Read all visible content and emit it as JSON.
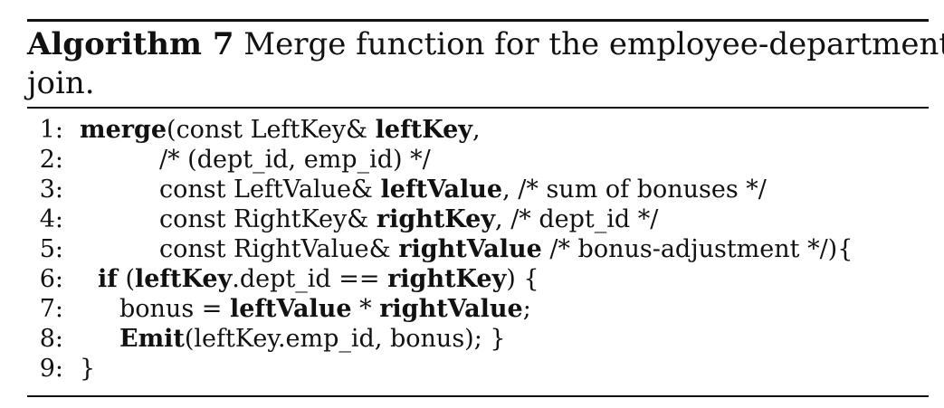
{
  "caption": {
    "label": "Algorithm 7",
    "line1": " Merge function for the employee-department",
    "line2": "join."
  },
  "lines": [
    {
      "num": "1:",
      "parts": [
        {
          "t": "merge",
          "b": true
        },
        {
          "t": "(const LeftKey& "
        },
        {
          "t": "leftKey",
          "b": true
        },
        {
          "t": ","
        }
      ]
    },
    {
      "num": "2:",
      "parts": [
        {
          "t": "/* (dept_id, emp_id) */"
        }
      ]
    },
    {
      "num": "3:",
      "parts": [
        {
          "t": "const LeftValue& "
        },
        {
          "t": "leftValue",
          "b": true
        },
        {
          "t": ", /* sum of bonuses */"
        }
      ]
    },
    {
      "num": "4:",
      "parts": [
        {
          "t": "const RightKey& "
        },
        {
          "t": "rightKey",
          "b": true
        },
        {
          "t": ", /* dept_id */"
        }
      ]
    },
    {
      "num": "5:",
      "parts": [
        {
          "t": "const RightValue& "
        },
        {
          "t": "rightValue",
          "b": true
        },
        {
          "t": " /* bonus-adjustment */){"
        }
      ]
    },
    {
      "num": "6:",
      "parts": [
        {
          "t": "if",
          "b": true
        },
        {
          "t": " ("
        },
        {
          "t": "leftKey",
          "b": true
        },
        {
          "t": ".dept_id == "
        },
        {
          "t": "rightKey",
          "b": true
        },
        {
          "t": ") {"
        }
      ]
    },
    {
      "num": "7:",
      "parts": [
        {
          "t": "bonus = "
        },
        {
          "t": "leftValue",
          "b": true
        },
        {
          "t": " * "
        },
        {
          "t": "rightValue",
          "b": true
        },
        {
          "t": ";"
        }
      ]
    },
    {
      "num": "8:",
      "parts": [
        {
          "t": "Emit",
          "b": true
        },
        {
          "t": "(leftKey.emp_id, bonus); }"
        }
      ]
    },
    {
      "num": "9:",
      "parts": [
        {
          "t": "}"
        }
      ]
    }
  ]
}
